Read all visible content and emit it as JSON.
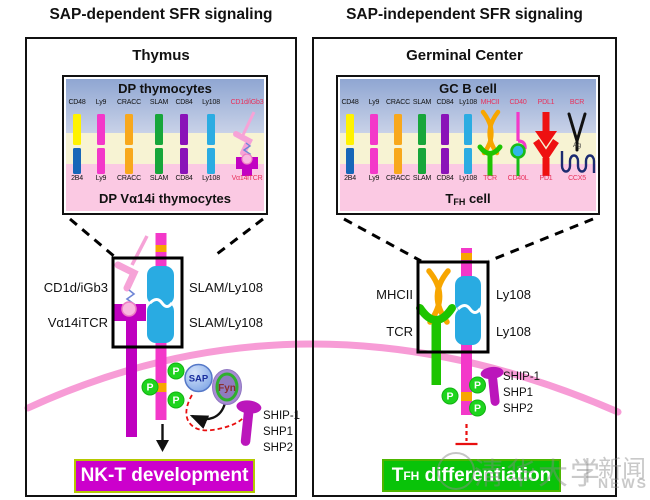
{
  "titles": {
    "left": "SAP-dependent SFR signaling",
    "right": "SAP-independent SFR signaling"
  },
  "phospho_badge": "P",
  "left_panel": {
    "header": "Thymus",
    "cell_box": {
      "top_cell": "DP thymocytes",
      "bottom_cell": "DP Vα14i thymocytes",
      "receptor_pairs": [
        {
          "top": "CD48",
          "bottom": "2B4",
          "top_color": "#FFF200",
          "bottom_color": "#1766B8"
        },
        {
          "top": "Ly9",
          "bottom": "Ly9",
          "top_color": "#F338C9",
          "bottom_color": "#F338C9"
        },
        {
          "top": "CRACC",
          "bottom": "CRACC",
          "top_color": "#F8A81C",
          "bottom_color": "#F8A81C"
        },
        {
          "top": "SLAM",
          "bottom": "SLAM",
          "top_color": "#17A63A",
          "bottom_color": "#17A63A"
        },
        {
          "top": "CD84",
          "bottom": "CD84",
          "top_color": "#8A13B8",
          "bottom_color": "#8A13B8"
        },
        {
          "top": "Ly108",
          "bottom": "Ly108",
          "top_color": "#2BACE2",
          "bottom_color": "#2BACE2"
        }
      ],
      "special_pairs": [
        {
          "top": "CD1d/iGb3",
          "bottom": "Vα14iTCR"
        }
      ]
    },
    "zoom_labels": {
      "l1": "CD1d/iGb3",
      "l2": "Vα14iTCR",
      "r1": "SLAM/Ly108",
      "r2": "SLAM/Ly108"
    },
    "signaling": {
      "sap": "SAP",
      "fyn": "Fyn",
      "phosphatases": [
        "SHIP-1",
        "SHP1",
        "SHP2"
      ]
    },
    "outcome": "NK-T development"
  },
  "right_panel": {
    "header": "Germinal Center",
    "cell_box": {
      "top_cell": "GC B cell",
      "bottom_cell": {
        "pre": "T",
        "sub": "FH",
        "post": " cell"
      },
      "ag": "Ag",
      "receptor_pairs": [
        {
          "top": "CD48",
          "bottom": "2B4",
          "top_color": "#FFF200",
          "bottom_color": "#1766B8"
        },
        {
          "top": "Ly9",
          "bottom": "Ly9",
          "top_color": "#F338C9",
          "bottom_color": "#F338C9"
        },
        {
          "top": "CRACC",
          "bottom": "CRACC",
          "top_color": "#F8A81C",
          "bottom_color": "#F8A81C"
        },
        {
          "top": "SLAM",
          "bottom": "SLAM",
          "top_color": "#17A63A",
          "bottom_color": "#17A63A"
        },
        {
          "top": "CD84",
          "bottom": "CD84",
          "top_color": "#8A13B8",
          "bottom_color": "#8A13B8"
        },
        {
          "top": "Ly108",
          "bottom": "Ly108",
          "top_color": "#2BACE2",
          "bottom_color": "#2BACE2"
        }
      ],
      "special_pairs": [
        {
          "top": "MHCII",
          "bottom": "TCR"
        },
        {
          "top": "CD40",
          "bottom": "CD40L"
        },
        {
          "top": "PDL1",
          "bottom": "PD1"
        },
        {
          "top": "BCR",
          "bottom": "CCX5"
        }
      ]
    },
    "zoom_labels": {
      "l1": "MHCII",
      "l2": "TCR",
      "r1": "Ly108",
      "r2": "Ly108"
    },
    "signaling": {
      "phosphatases": [
        "SHIP-1",
        "SHP1",
        "SHP2"
      ]
    },
    "outcome": {
      "pre": "T",
      "sub": "FH",
      "post": " differentiation"
    }
  },
  "watermark": {
    "cn": "清华大学",
    "divider": "|",
    "news_cn": "新闻",
    "news_en": "NEWS"
  },
  "colors": {
    "membrane": "#F79CD6",
    "phospho_green": "#1ED41E",
    "red_label": "#E8315B",
    "nkt_box_bg": "#CC00CC",
    "nkt_box_border": "#B5C900",
    "tfh_box_bg": "#09C309",
    "tfh_box_border": "#4CB600",
    "band_blue_top": "#8FA6D2",
    "band_blue_bottom": "#C9D2E8",
    "band_yellow": "#F7F3D3",
    "band_pink": "#FBC9E3"
  }
}
